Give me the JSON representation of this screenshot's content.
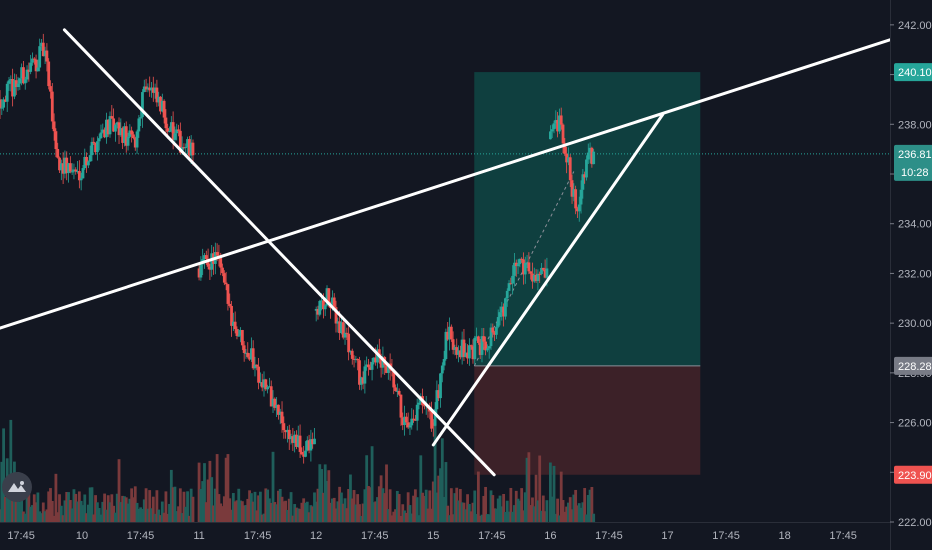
{
  "colors": {
    "background": "#131722",
    "bull": "#26a69a",
    "bear": "#ef5350",
    "bull_volume": "#1f5f5b",
    "bear_volume": "#7a3a3c",
    "profit_zone": "#0f3f3f",
    "loss_zone": "#3c2128",
    "current_price_tag": "#2d8f88",
    "entry_tag": "#787b86",
    "stop_tag": "#ef5350",
    "target_tag": "#26a69a",
    "drawing": "#ffffff"
  },
  "logo_icon": "tradingview-logo-icon",
  "chart_data": {
    "type": "candlestick",
    "y_axis": {
      "range": [
        222,
        243
      ],
      "ticks": [
        "222.00",
        "224.00",
        "226.00",
        "228.00",
        "230.00",
        "232.00",
        "234.00",
        "236.00",
        "238.00",
        "240.00",
        "242.00"
      ],
      "tick_values": [
        222,
        224,
        226,
        228,
        230,
        232,
        234,
        236,
        238,
        240,
        242
      ]
    },
    "x_axis": {
      "range": [
        -0.7,
        6.9
      ],
      "ticks": [
        {
          "label": "17:45",
          "t": -0.52
        },
        {
          "label": "10",
          "t": 0
        },
        {
          "label": "17:45",
          "t": 0.5
        },
        {
          "label": "11",
          "t": 1
        },
        {
          "label": "17:45",
          "t": 1.5
        },
        {
          "label": "12",
          "t": 2
        },
        {
          "label": "17:45",
          "t": 2.5
        },
        {
          "label": "15",
          "t": 3
        },
        {
          "label": "17:45",
          "t": 3.5
        },
        {
          "label": "16",
          "t": 4
        },
        {
          "label": "17:45",
          "t": 4.5
        },
        {
          "label": "17",
          "t": 5
        },
        {
          "label": "17:45",
          "t": 5.5
        },
        {
          "label": "18",
          "t": 6
        },
        {
          "label": "17:45",
          "t": 6.5
        }
      ]
    },
    "price_tags": [
      {
        "label": "240.10",
        "value": 240.1,
        "kind": "target"
      },
      {
        "label": "236.81",
        "value": 236.81,
        "kind": "current",
        "countdown": "10:28"
      },
      {
        "label": "228.28",
        "value": 228.28,
        "kind": "entry"
      },
      {
        "label": "223.90",
        "value": 223.9,
        "kind": "stop"
      }
    ],
    "current_price": 236.81,
    "trendlines": [
      {
        "from": [
          -0.15,
          241.8
        ],
        "to": [
          3.52,
          223.9
        ]
      },
      {
        "from": [
          -0.7,
          229.8
        ],
        "to": [
          6.9,
          241.4
        ]
      },
      {
        "from": [
          3.0,
          225.1
        ],
        "to": [
          4.96,
          238.4
        ]
      }
    ],
    "position_tool": {
      "t_start": 3.35,
      "t_end": 5.28,
      "target": 240.1,
      "entry": 228.28,
      "stop": 223.9,
      "dashed_path": [
        [
          3.35,
          228.28
        ],
        [
          4.2,
          236.1
        ]
      ]
    },
    "sessions": [
      {
        "t_start": -0.7,
        "t_end": 0.97,
        "open": 239.0,
        "waypoints": [
          [
            239.0,
            0
          ],
          [
            240.2,
            0.15
          ],
          [
            241.0,
            0.23
          ],
          [
            236.5,
            0.3
          ],
          [
            236.0,
            0.4
          ],
          [
            238.0,
            0.55
          ],
          [
            237.2,
            0.7
          ],
          [
            239.8,
            0.75
          ],
          [
            238.4,
            0.85
          ],
          [
            237.5,
            0.9
          ],
          [
            236.8,
            1
          ]
        ]
      },
      {
        "t_start": 1.0,
        "t_end": 2.0,
        "open": 232.2,
        "waypoints": [
          [
            232.2,
            0
          ],
          [
            232.7,
            0.15
          ],
          [
            230.0,
            0.3
          ],
          [
            228.7,
            0.45
          ],
          [
            227.2,
            0.6
          ],
          [
            225.7,
            0.75
          ],
          [
            224.8,
            0.9
          ],
          [
            225.2,
            1
          ]
        ]
      },
      {
        "t_start": 2.0,
        "t_end": 3.0,
        "open": 230.5,
        "waypoints": [
          [
            230.5,
            0
          ],
          [
            231.0,
            0.1
          ],
          [
            229.5,
            0.25
          ],
          [
            227.6,
            0.4
          ],
          [
            228.8,
            0.5
          ],
          [
            227.8,
            0.65
          ],
          [
            225.4,
            0.8
          ],
          [
            226.8,
            0.9
          ],
          [
            226.0,
            1
          ]
        ]
      },
      {
        "t_start": 3.0,
        "t_end": 3.98,
        "open": 226.0,
        "waypoints": [
          [
            226.0,
            0
          ],
          [
            229.5,
            0.12
          ],
          [
            228.8,
            0.3
          ],
          [
            229.2,
            0.45
          ],
          [
            230.3,
            0.6
          ],
          [
            232.6,
            0.75
          ],
          [
            232.1,
            0.85
          ],
          [
            231.8,
            1
          ]
        ]
      },
      {
        "t_start": 4.0,
        "t_end": 4.38,
        "open": 237.4,
        "waypoints": [
          [
            237.4,
            0
          ],
          [
            238.0,
            0.2
          ],
          [
            236.0,
            0.45
          ],
          [
            234.6,
            0.6
          ],
          [
            236.5,
            0.85
          ],
          [
            236.81,
            1
          ]
        ]
      }
    ],
    "series": [
      {
        "name": "Price",
        "kind": "candles"
      },
      {
        "name": "Volume",
        "kind": "histogram"
      }
    ]
  }
}
